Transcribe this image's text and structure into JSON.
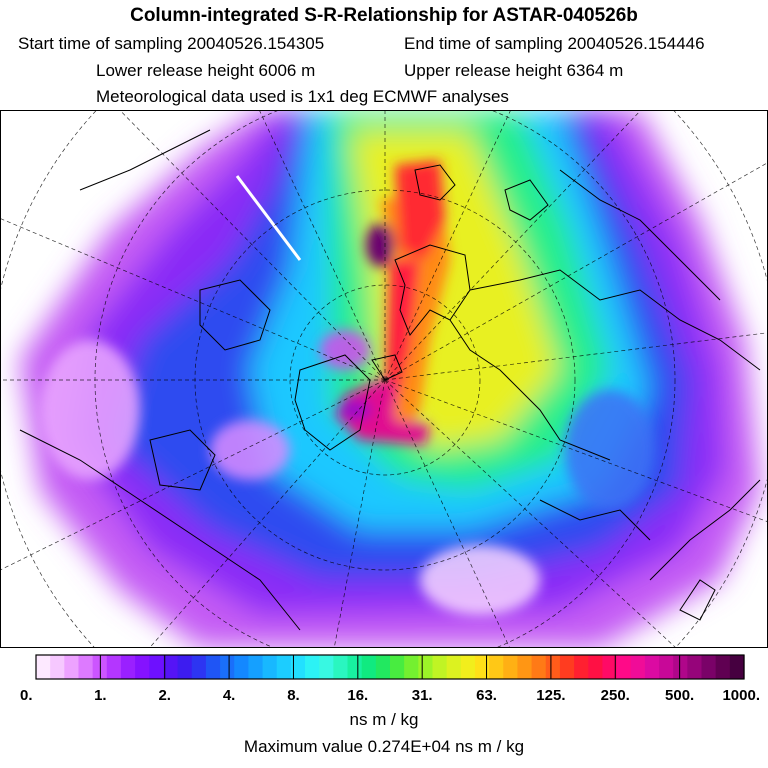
{
  "header": {
    "title": "Column-integrated S-R-Relationship for ASTAR-040526b",
    "start_label": "Start time of sampling 20040526.154305",
    "end_label": "End time of sampling 20040526.154446",
    "lower_label": "Lower release height 6006 m",
    "upper_label": "Upper release height 6364 m",
    "met_label": "Meteorological data used is 1x1 deg ECMWF analyses"
  },
  "legend": {
    "tick_labels": [
      "0.",
      "1.",
      "2.",
      "4.",
      "8.",
      "16.",
      "31.",
      "63.",
      "125.",
      "250.",
      "500.",
      "1000."
    ],
    "units": "ns m / kg",
    "colors": [
      "#fde9ff",
      "#f6c8ff",
      "#eda2ff",
      "#dd7aff",
      "#cc55ff",
      "#b436ff",
      "#9a20ff",
      "#8512ff",
      "#6e10ff",
      "#5514f6",
      "#3d1cf0",
      "#2d35f2",
      "#1f55f5",
      "#1a6ffa",
      "#1488ff",
      "#15a0ff",
      "#18b8ff",
      "#1ccdff",
      "#22e0ff",
      "#2cf2f5",
      "#38f8e2",
      "#2af6c0",
      "#18f0a0",
      "#10ea80",
      "#22e860",
      "#48ec40",
      "#74f030",
      "#9cf428",
      "#c0f424",
      "#dcf220",
      "#f2ee1c",
      "#ffe018",
      "#ffc816",
      "#ffb014",
      "#ff9614",
      "#ff7a16",
      "#ff5c1a",
      "#ff3c20",
      "#ff2030",
      "#ff1044",
      "#ff0a66",
      "#ff0a88",
      "#f00c98",
      "#dc0aa2",
      "#c80898",
      "#b0068a",
      "#96047a",
      "#7a0268",
      "#600052",
      "#460040"
    ]
  },
  "max_value_text": "Maximum value  0.274E+04 ns m / kg"
}
